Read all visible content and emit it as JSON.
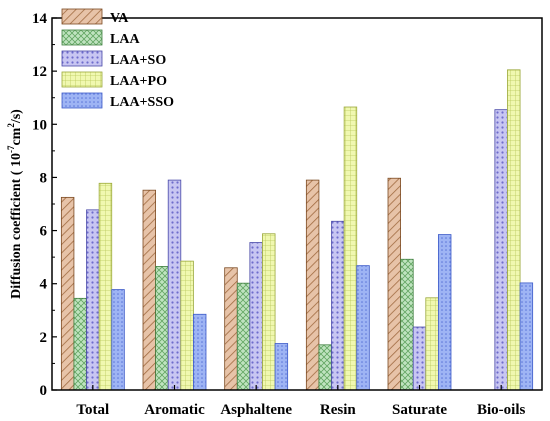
{
  "chart_data": {
    "type": "bar",
    "title": "",
    "xlabel": "",
    "ylabel": {
      "prefix": "Diffusion coefficient ( 10",
      "exp": "-7",
      "mid": "cm",
      "exp2": "2",
      "suffix": "/s)"
    },
    "ylim": [
      0,
      14
    ],
    "yticks": [
      "0",
      "2",
      "4",
      "6",
      "8",
      "10",
      "12",
      "14"
    ],
    "grid": false,
    "legend_position": "top-left",
    "categories": [
      "Total",
      "Aromatic",
      "Asphaltene",
      "Resin",
      "Saturate",
      "Bio-oils"
    ],
    "series": [
      {
        "name": "VA",
        "values": [
          7.25,
          7.52,
          4.6,
          7.9,
          7.97,
          null
        ],
        "color": "#e7c3a8",
        "stroke": "#7b4a22",
        "pattern": "diag-left"
      },
      {
        "name": "LAA",
        "values": [
          3.45,
          4.65,
          4.02,
          1.7,
          4.92,
          null
        ],
        "color": "#bfe3bf",
        "stroke": "#3f7f3f",
        "pattern": "diamond"
      },
      {
        "name": "LAA+SO",
        "values": [
          6.78,
          7.9,
          5.55,
          6.35,
          2.37,
          10.55
        ],
        "color": "#c8c6f2",
        "stroke": "#4a4aa8",
        "pattern": "dots"
      },
      {
        "name": "LAA+PO",
        "values": [
          7.78,
          4.85,
          5.88,
          10.65,
          3.47,
          12.05
        ],
        "color": "#f0f8b0",
        "stroke": "#9aa83a",
        "pattern": "grid"
      },
      {
        "name": "LAA+SSO",
        "values": [
          3.78,
          2.85,
          1.75,
          4.68,
          5.85,
          4.03
        ],
        "color": "#9eb4f4",
        "stroke": "#3d5bc8",
        "pattern": "dots-fine"
      }
    ]
  }
}
